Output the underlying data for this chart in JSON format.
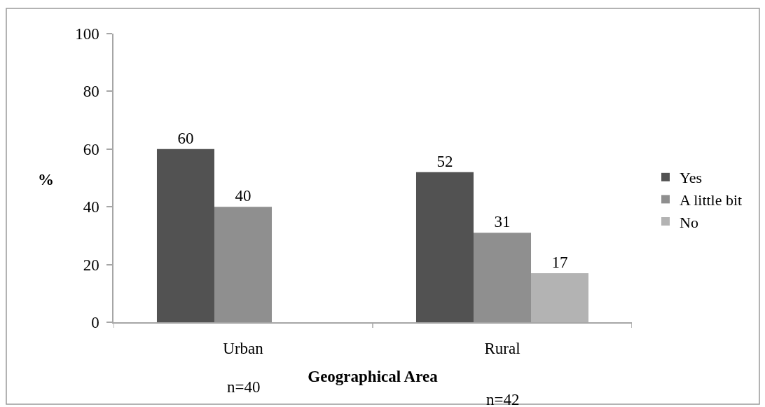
{
  "chart_data": {
    "type": "bar",
    "categories": [
      "Urban",
      "Rural"
    ],
    "series": [
      {
        "name": "Yes",
        "color": "#525252",
        "values": [
          60,
          52
        ]
      },
      {
        "name": "A little bit",
        "color": "#8f8f8f",
        "values": [
          40,
          31
        ]
      },
      {
        "name": "No",
        "color": "#b3b3b3",
        "values": [
          null,
          17
        ]
      }
    ],
    "xlabel": "Geographical Area",
    "ylabel": "%",
    "ylim": [
      0,
      100
    ],
    "yticks": [
      0,
      20,
      40,
      60,
      80,
      100
    ],
    "data_labels": true,
    "legend": "right",
    "grid": false,
    "annotations": [
      "n=40",
      "n=42"
    ]
  }
}
